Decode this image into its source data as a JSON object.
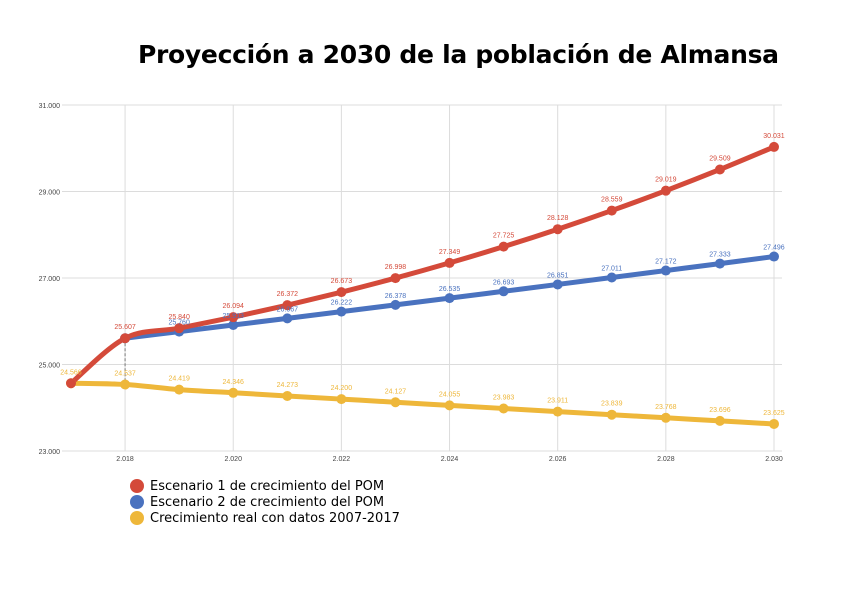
{
  "chart_data": {
    "type": "line",
    "title": "Proyección a 2030 de la población de Almansa",
    "xlabel": "",
    "ylabel": "",
    "x": [
      2017,
      2018,
      2019,
      2020,
      2021,
      2022,
      2023,
      2024,
      2025,
      2026,
      2027,
      2028,
      2029,
      2030
    ],
    "x_tick_labels": [
      "2.018",
      "2.020",
      "2.022",
      "2.024",
      "2.026",
      "2.028",
      "2.030"
    ],
    "x_tick_values": [
      2018,
      2020,
      2022,
      2024,
      2026,
      2028,
      2030
    ],
    "y_tick_labels": [
      "23.000",
      "25.000",
      "27.000",
      "29.000",
      "31.000"
    ],
    "y_tick_values": [
      23000,
      25000,
      27000,
      29000,
      31000
    ],
    "xlim": [
      2017,
      2030
    ],
    "ylim": [
      23000,
      31000
    ],
    "grid": true,
    "legend_position": "bottom-left",
    "series": [
      {
        "name": "Escenario 1 de crecimiento del POM",
        "color": "#d44a3a",
        "values": [
          24566,
          25607,
          25840,
          26094,
          26372,
          26673,
          26998,
          27349,
          27725,
          28128,
          28559,
          29019,
          29509,
          30031
        ],
        "labels": [
          "",
          "25.607",
          "25.840",
          "26.094",
          "26.372",
          "26.673",
          "26.998",
          "27.349",
          "27.725",
          "28.128",
          "28.559",
          "29.019",
          "29.509",
          "30.031"
        ]
      },
      {
        "name": "Escenario 2 de crecimiento del POM",
        "color": "#4a72bf",
        "values": [
          null,
          25607,
          25760,
          25913,
          26067,
          26222,
          26378,
          26535,
          26693,
          26851,
          27011,
          27172,
          27333,
          27496
        ],
        "labels": [
          "",
          "",
          "25.760",
          "25.913",
          "26.067",
          "26.222",
          "26.378",
          "26.535",
          "26.693",
          "26.851",
          "27.011",
          "27.172",
          "27.333",
          "27.496"
        ]
      },
      {
        "name": "Crecimiento real con datos 2007-2017",
        "color": "#eeb73a",
        "values": [
          24566,
          24537,
          24419,
          24346,
          24273,
          24200,
          24127,
          24055,
          23983,
          23911,
          23839,
          23768,
          23696,
          23625
        ],
        "labels": [
          "24.566",
          "24.537",
          "24.419",
          "24.346",
          "24.273",
          "24.200",
          "24.127",
          "24.055",
          "23.983",
          "23.911",
          "23.839",
          "23.768",
          "23.696",
          "23.625"
        ]
      }
    ]
  }
}
